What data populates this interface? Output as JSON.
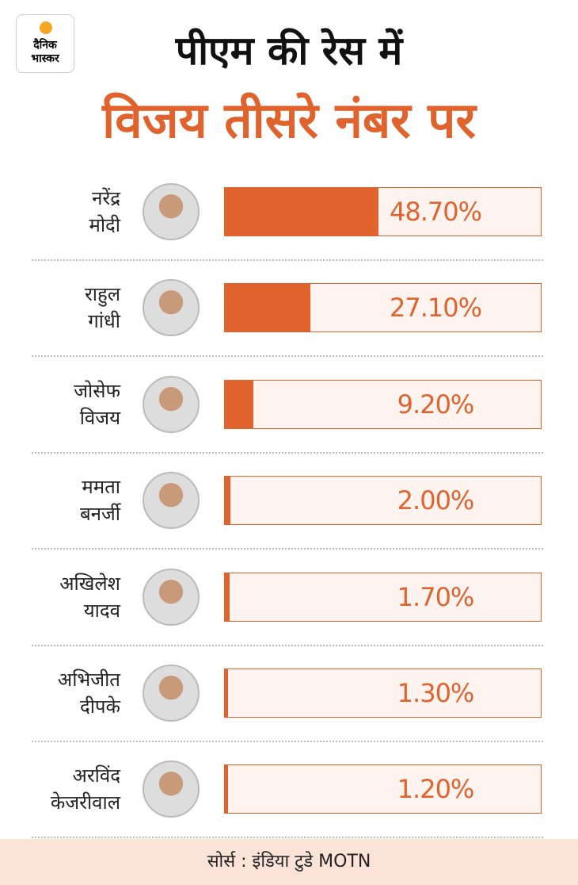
{
  "logo": "दैनिक भास्कर",
  "chart_data": {
    "type": "bar",
    "title": "पीएम की रेस में",
    "subtitle": "विजय तीसरे नंबर पर",
    "categories": [
      "नरेंद्र मोदी",
      "राहुल गांधी",
      "जोसेफ विजय",
      "ममता बनर्जी",
      "अखिलेश यादव",
      "अभिजीत दीपके",
      "अरविंद केजरीवाल"
    ],
    "values": [
      48.7,
      27.1,
      9.2,
      2.0,
      1.7,
      1.3,
      1.2
    ],
    "value_labels": [
      "48.70%",
      "27.10%",
      "9.20%",
      "2.00%",
      "1.70%",
      "1.30%",
      "1.20%"
    ],
    "xlim": [
      0,
      100
    ],
    "color": "#e0622d",
    "source": "सोर्स : इंडिया टुडे MOTN"
  }
}
